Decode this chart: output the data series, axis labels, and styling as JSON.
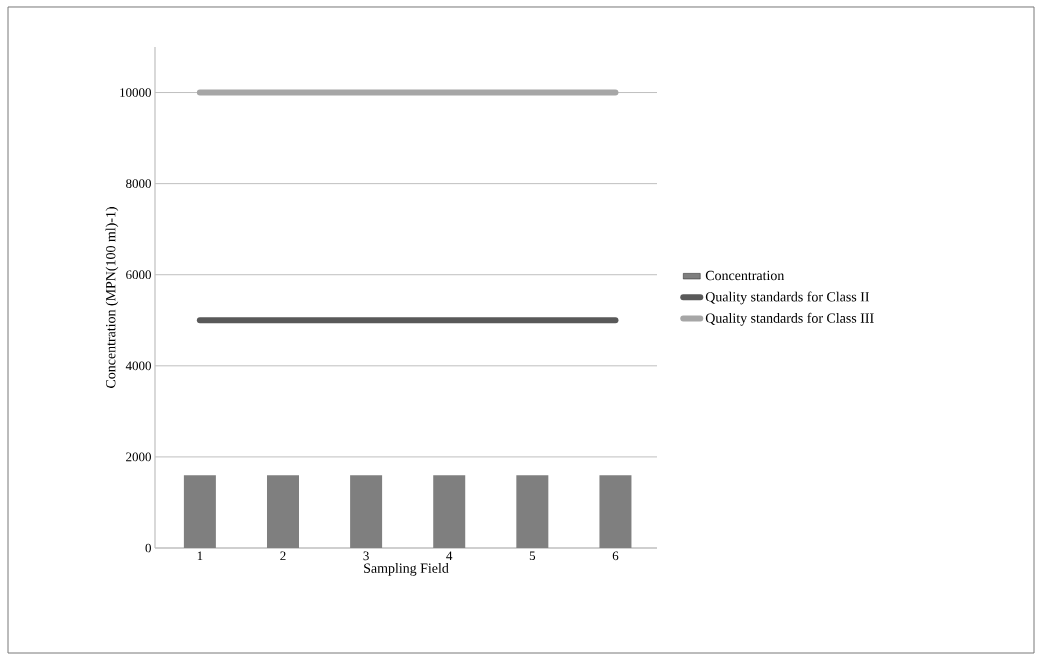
{
  "chart_data": {
    "type": "bar",
    "xlabel": "Sampling Field",
    "ylabel": "Concentration (MPN(100 ml)-1)",
    "categories": [
      "1",
      "2",
      "3",
      "4",
      "5",
      "6"
    ],
    "series": [
      {
        "name": "Concentration",
        "color": "#7f7f7f",
        "values": [
          1600,
          1600,
          1600,
          1600,
          1600,
          1600
        ]
      },
      {
        "name": "Quality standards for Class II",
        "type": "line",
        "color": "#595959",
        "values": [
          5000,
          5000,
          5000,
          5000,
          5000,
          5000
        ]
      },
      {
        "name": "Quality standards for Class III",
        "type": "line",
        "color": "#a6a6a6",
        "values": [
          10000,
          10000,
          10000,
          10000,
          10000,
          10000
        ]
      }
    ],
    "ylim": [
      0,
      11000
    ],
    "yticks": [
      0,
      2000,
      4000,
      6000,
      8000,
      10000
    ],
    "grid": "y",
    "legend": "right"
  }
}
